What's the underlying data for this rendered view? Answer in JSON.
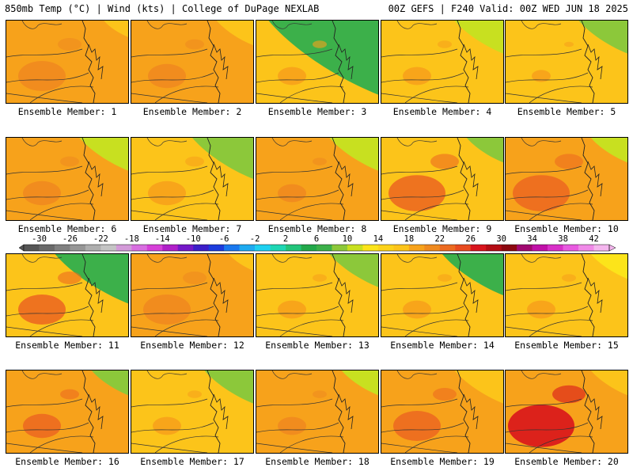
{
  "header": {
    "left": "850mb Temp (°C) | Wind (kts) | College of DuPage NEXLAB",
    "right": "00Z GEFS | F240 Valid: 00Z WED JUN 18 2025"
  },
  "label_prefix": "Ensemble Member:",
  "members": [
    {
      "label": "Ensemble Member: 1",
      "base": "#f7a21b",
      "cool": "#fcc41a",
      "warm": "#ef8a1f",
      "cool_level": 0.2,
      "warm_level": 0.5
    },
    {
      "label": "Ensemble Member: 2",
      "base": "#f7a21b",
      "cool": "#fcc41a",
      "warm": "#ef8a1f",
      "cool_level": 0.3,
      "warm_level": 0.4
    },
    {
      "label": "Ensemble Member: 3",
      "base": "#fcc41a",
      "cool": "#3cb04a",
      "warm": "#f7a21b",
      "cool_level": 0.9,
      "warm_level": 0.3
    },
    {
      "label": "Ensemble Member: 4",
      "base": "#fcc41a",
      "cool": "#c8e020",
      "warm": "#f7a21b",
      "cool_level": 0.4,
      "warm_level": 0.3
    },
    {
      "label": "Ensemble Member: 5",
      "base": "#fcc41a",
      "cool": "#8cc83a",
      "warm": "#f7a21b",
      "cool_level": 0.4,
      "warm_level": 0.2
    },
    {
      "label": "Ensemble Member: 6",
      "base": "#f7a21b",
      "cool": "#c8e020",
      "warm": "#ef8a1f",
      "cool_level": 0.4,
      "warm_level": 0.4
    },
    {
      "label": "Ensemble Member: 7",
      "base": "#fcc41a",
      "cool": "#8cc83a",
      "warm": "#f7a21b",
      "cool_level": 0.5,
      "warm_level": 0.4
    },
    {
      "label": "Ensemble Member: 8",
      "base": "#f7a21b",
      "cool": "#c8e020",
      "warm": "#ef8a1f",
      "cool_level": 0.4,
      "warm_level": 0.3
    },
    {
      "label": "Ensemble Member: 9",
      "base": "#fcc41a",
      "cool": "#8cc83a",
      "warm": "#ec6a20",
      "cool_level": 0.3,
      "warm_level": 0.6
    },
    {
      "label": "Ensemble Member: 10",
      "base": "#f7a21b",
      "cool": "#c8e020",
      "warm": "#ec6a20",
      "cool_level": 0.3,
      "warm_level": 0.6
    },
    {
      "label": "Ensemble Member: 11",
      "base": "#fcc41a",
      "cool": "#3cb04a",
      "warm": "#ec6a20",
      "cool_level": 0.6,
      "warm_level": 0.5
    },
    {
      "label": "Ensemble Member: 12",
      "base": "#f7a21b",
      "cool": "#fcc41a",
      "warm": "#ef8a1f",
      "cool_level": 0.2,
      "warm_level": 0.5
    },
    {
      "label": "Ensemble Member: 13",
      "base": "#fcc41a",
      "cool": "#8cc83a",
      "warm": "#f7a21b",
      "cool_level": 0.4,
      "warm_level": 0.3
    },
    {
      "label": "Ensemble Member: 14",
      "base": "#fcc41a",
      "cool": "#3cb04a",
      "warm": "#f7a21b",
      "cool_level": 0.5,
      "warm_level": 0.3
    },
    {
      "label": "Ensemble Member: 15",
      "base": "#fcc41a",
      "cool": "#fce41a",
      "warm": "#f7a21b",
      "cool_level": 0.3,
      "warm_level": 0.3
    },
    {
      "label": "Ensemble Member: 16",
      "base": "#f7a21b",
      "cool": "#8cc83a",
      "warm": "#ec6a20",
      "cool_level": 0.3,
      "warm_level": 0.4
    },
    {
      "label": "Ensemble Member: 17",
      "base": "#fcc41a",
      "cool": "#8cc83a",
      "warm": "#f7a21b",
      "cool_level": 0.4,
      "warm_level": 0.3
    },
    {
      "label": "Ensemble Member: 18",
      "base": "#f7a21b",
      "cool": "#c8e020",
      "warm": "#ef8a1f",
      "cool_level": 0.3,
      "warm_level": 0.3
    },
    {
      "label": "Ensemble Member: 19",
      "base": "#f7a21b",
      "cool": "#fcc41a",
      "warm": "#ec6a20",
      "cool_level": 0.4,
      "warm_level": 0.5
    },
    {
      "label": "Ensemble Member: 20",
      "base": "#f7a21b",
      "cool": "#fcc41a",
      "warm": "#d8141c",
      "cool_level": 0.3,
      "warm_level": 0.7
    }
  ],
  "colorbar": {
    "labels": [
      "-30",
      "-26",
      "-22",
      "-18",
      "-14",
      "-10",
      "-6",
      "-2",
      "2",
      "6",
      "10",
      "14",
      "18",
      "22",
      "26",
      "30",
      "34",
      "38",
      "42"
    ],
    "colors": [
      "#555555",
      "#6a6a6a",
      "#808080",
      "#969696",
      "#aeaeae",
      "#c4c4c4",
      "#d39ad8",
      "#d86ee0",
      "#d640d8",
      "#b020c8",
      "#7418c8",
      "#3c1ec8",
      "#1c3cdc",
      "#1a78ee",
      "#1eaaf0",
      "#1ed0f0",
      "#1ed6b4",
      "#22c47a",
      "#22a84a",
      "#3cb04a",
      "#8cc83a",
      "#c8e020",
      "#fce41a",
      "#fcd21a",
      "#fcc41a",
      "#f7a21b",
      "#ef8a1f",
      "#ec6a20",
      "#e84a20",
      "#d8141c",
      "#b40c14",
      "#8c0810",
      "#a00870",
      "#c010a8",
      "#d830c8",
      "#e85ae0",
      "#f08ae8",
      "#f4b6ee"
    ]
  }
}
